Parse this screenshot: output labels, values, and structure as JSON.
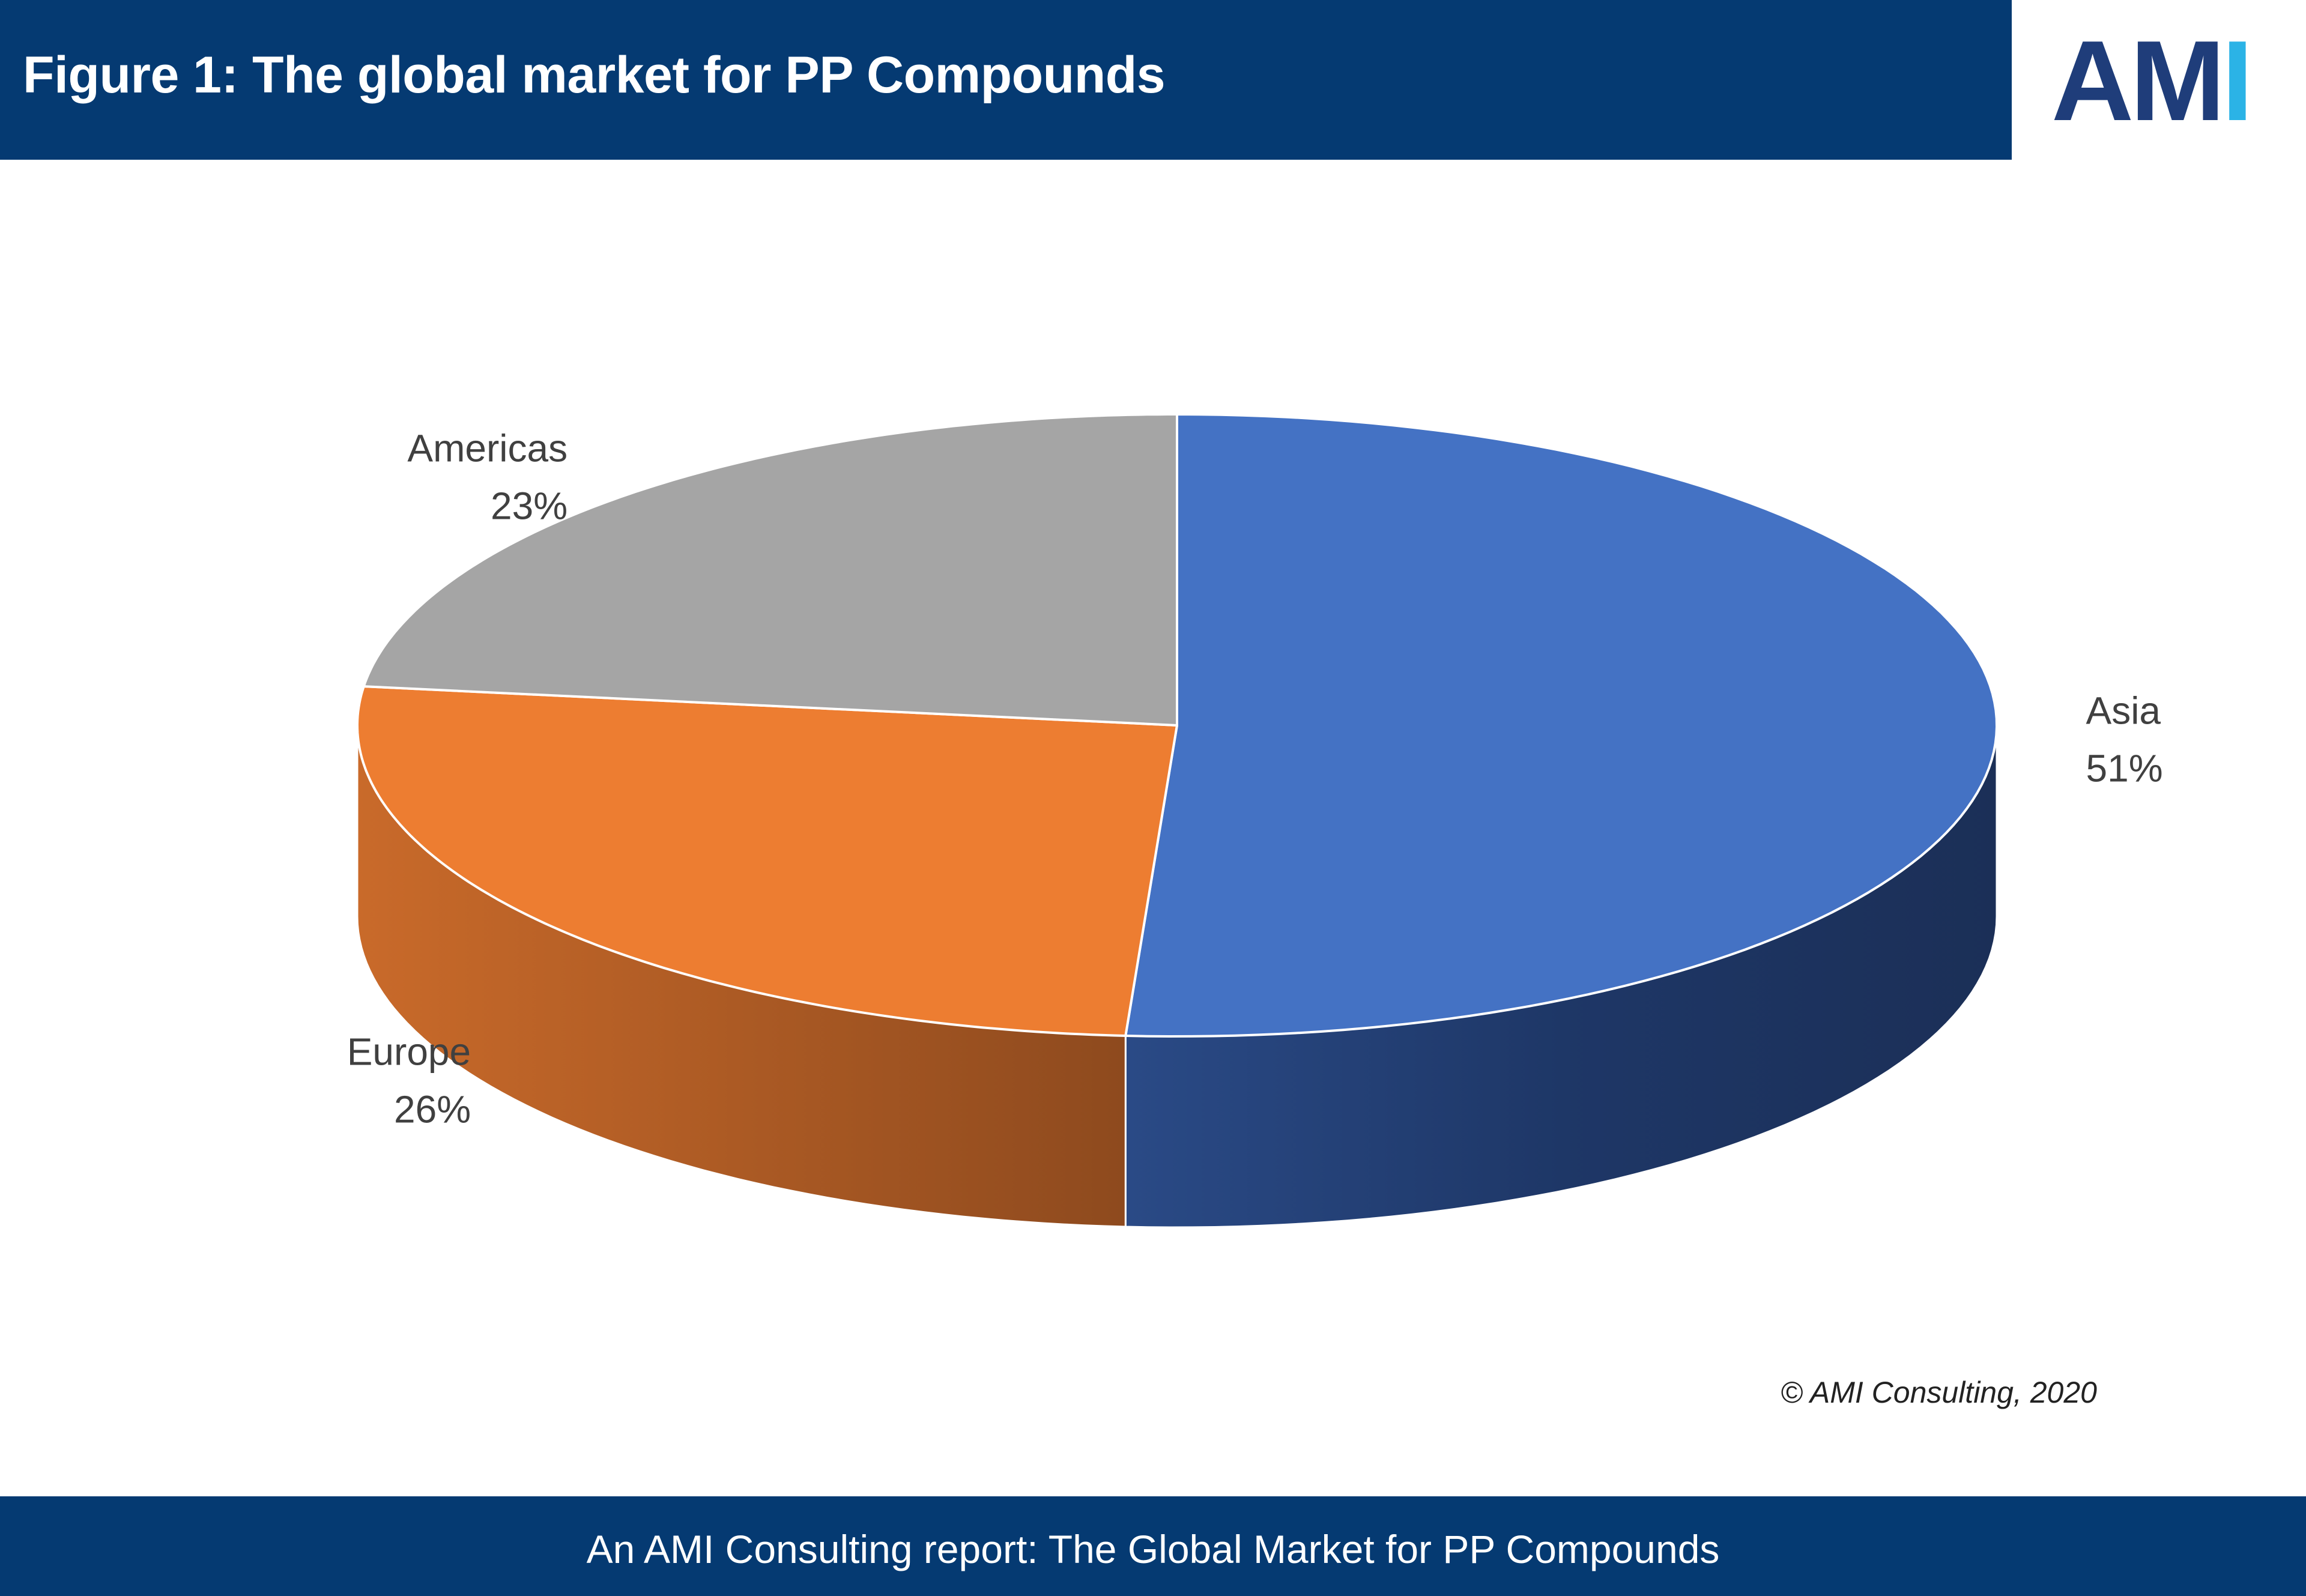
{
  "header": {
    "title": "Figure 1: The global market for PP Compounds",
    "logo_text_am": "AM",
    "logo_text_i": "I"
  },
  "chart_data": {
    "type": "pie",
    "categories": [
      "Asia",
      "Europe",
      "Americas"
    ],
    "values": [
      51,
      26,
      23
    ],
    "labels": [
      {
        "name": "Asia",
        "pct": "51%"
      },
      {
        "name": "Europe",
        "pct": "26%"
      },
      {
        "name": "Americas",
        "pct": "23%"
      }
    ],
    "colors": {
      "Asia": "#4472c4",
      "Europe": "#ed7d31",
      "Americas": "#a5a5a5"
    },
    "side_colors": {
      "Asia": "#1f3766",
      "Europe": "#a9561f",
      "Americas": "#6e6e6e"
    },
    "style": "3d"
  },
  "copyright": "© AMI Consulting, 2020",
  "footer": {
    "text": "An AMI Consulting report: The Global Market for PP Compounds"
  }
}
